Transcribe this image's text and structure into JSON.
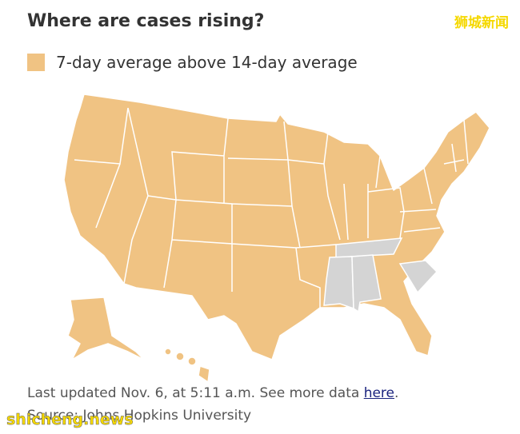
{
  "header": {
    "title": "Where are cases rising?"
  },
  "legend": {
    "label": "7-day average above 14-day average"
  },
  "footer": {
    "updated": "Last updated Nov. 6, at 5:11 a.m. See more data",
    "link": "here",
    "period": ".",
    "source": "Source: Johns Hopkins University"
  },
  "watermark": {
    "top": "狮城新闻",
    "bottom": "shicheng.news"
  }
}
